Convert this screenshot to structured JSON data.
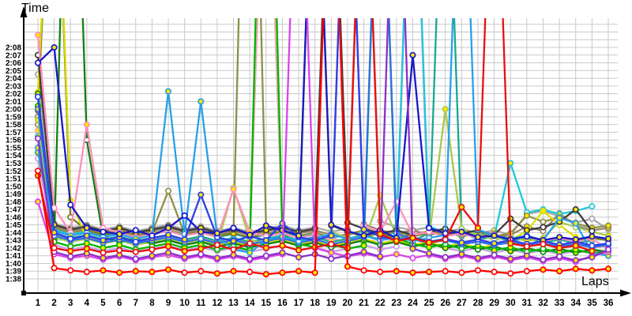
{
  "chart_data": {
    "type": "line",
    "title": "Time",
    "xlabel": "Laps",
    "grid": true,
    "legend": false,
    "background": "#ffffff",
    "grid_color": "#c9c9c9",
    "axis_color": "#000000",
    "marker_fill_primary": "#ffe800",
    "marker_fill_secondary": "#ffffff",
    "y_ticks": [
      "2:08",
      "2:07",
      "2:06",
      "2:05",
      "2:04",
      "2:03",
      "2:02",
      "2:01",
      "2:00",
      "1:59",
      "1:58",
      "1:57",
      "1:56",
      "1:55",
      "1:54",
      "1:53",
      "1:52",
      "1:51",
      "1:50",
      "1:49",
      "1:48",
      "1:47",
      "1:46",
      "1:45",
      "1:44",
      "1:43",
      "1:42",
      "1:41",
      "1:40",
      "1:39",
      "1:38"
    ],
    "y_range_seconds": [
      98,
      128
    ],
    "x_ticks": [
      1,
      2,
      3,
      4,
      5,
      6,
      7,
      8,
      9,
      10,
      11,
      12,
      13,
      14,
      15,
      16,
      17,
      18,
      19,
      20,
      21,
      22,
      23,
      24,
      25,
      26,
      27,
      28,
      29,
      30,
      31,
      32,
      33,
      34,
      35,
      36
    ],
    "x_range": [
      1,
      36
    ],
    "note": "values are lap times in seconds (98 = 1:38); values far above 128 are pit laps drawn off the top of the scale; null = no lap recorded",
    "series": [
      {
        "name": "pale-violet",
        "color": "#c8a0e8",
        "laps": [
          113.6,
          102.4,
          101.8,
          102.2,
          101.6,
          102,
          101.5,
          101.9,
          102.3,
          101.7,
          102.1,
          101.6,
          102,
          101.5,
          101.9,
          102.3,
          101.7,
          102.1,
          101.5,
          101.9,
          102.4,
          101.8,
          102.2,
          165,
          102.8,
          102,
          101.6,
          102,
          101.4,
          101.8,
          101.3,
          101.7,
          101.2,
          101.6,
          101.4,
          101.7
        ]
      },
      {
        "name": "gray",
        "color": "#a8a8a8",
        "laps": [
          124.5,
          105.2,
          104.6,
          105,
          104.4,
          104.8,
          104.2,
          104.6,
          105,
          104.4,
          104.8,
          104.2,
          104.6,
          104.1,
          104.5,
          104.9,
          104.3,
          104.7,
          104.1,
          104.5,
          165,
          105.5,
          104.7,
          104.3,
          104.7,
          104.1,
          104.5,
          103.9,
          104.3,
          103.7,
          106.4,
          106.8,
          106.1,
          105.3,
          105.8,
          104.4
        ]
      },
      {
        "name": "gray-brown",
        "color": "#96836b",
        "laps": [
          118,
          104.8,
          104.2,
          104.6,
          104,
          104.4,
          103.8,
          104.2,
          104.6,
          104,
          104.4,
          103.8,
          104.2,
          103.7,
          104.1,
          104.5,
          103.9,
          104.3,
          103.7,
          165,
          105.1,
          104.3,
          103.9,
          104.3,
          103.7,
          104.1,
          103.5,
          103.9,
          103.3,
          103.7,
          104.8,
          104.2,
          106.5,
          104.9,
          104.3,
          104.6
        ]
      },
      {
        "name": "salmon",
        "color": "#f2a8a8",
        "laps": [
          117.2,
          103.7,
          103.1,
          103.5,
          102.9,
          103.3,
          102.7,
          103.1,
          103.5,
          102.9,
          103.3,
          102.7,
          103.1,
          102.6,
          165,
          103.9,
          103.3,
          102.9,
          103.3,
          102.7,
          103.1,
          102.5,
          102.9,
          102.4,
          102.8,
          103.2,
          102.6,
          103,
          102.4,
          102.8,
          102.2,
          102.6,
          102.1,
          102.5,
          102,
          102.3
        ]
      },
      {
        "name": "teal",
        "color": "#18a890",
        "laps": [
          114.4,
          103.9,
          103.3,
          103.7,
          103.1,
          103.5,
          102.9,
          103.3,
          103.7,
          103.1,
          103.5,
          102.9,
          103.3,
          102.8,
          103.2,
          103.6,
          103,
          103.4,
          102.8,
          103.2,
          103.7,
          103.1,
          103.5,
          102.9,
          103.9,
          165,
          104.1,
          103.1,
          103.5,
          102.9,
          103.3,
          102.7,
          103.1,
          102.6,
          103,
          null
        ]
      },
      {
        "name": "cyan",
        "color": "#20c8d8",
        "laps": [
          116.5,
          104.4,
          103.8,
          104.2,
          103.6,
          104,
          103.4,
          103.8,
          104.2,
          103.6,
          104,
          103.4,
          103.8,
          103.3,
          103.7,
          104.1,
          103.5,
          103.9,
          103.3,
          103.7,
          104.2,
          103.6,
          104,
          165,
          104.8,
          104,
          103.6,
          104,
          103.4,
          113,
          106.6,
          107,
          106.4,
          106.8,
          107.4,
          null
        ]
      },
      {
        "name": "olive",
        "color": "#8f8f4a",
        "laps": [
          119,
          104.6,
          104,
          104.4,
          103.8,
          104.2,
          103.6,
          104,
          109.4,
          103.8,
          104.2,
          103.6,
          104,
          190,
          104.8,
          104.2,
          103.6,
          104,
          103.4,
          103.8,
          104.3,
          103.7,
          104.1,
          103.5,
          103.9,
          104.3,
          103.7,
          104.1,
          103.5,
          103.9,
          106.2,
          105.4,
          106,
          105.2,
          104.6,
          104.9
        ]
      },
      {
        "name": "dark-olive",
        "color": "#7a7a22",
        "laps": [
          119.8,
          165,
          106,
          104.3,
          103.7,
          104.1,
          103.5,
          103.9,
          104.3,
          103.7,
          104.1,
          103.5,
          103.9,
          103.4,
          103.8,
          104.2,
          103.6,
          165,
          104.9,
          104.1,
          103.5,
          103.9,
          103.3,
          103.7,
          104.2,
          103.6,
          104,
          103.4,
          103.8,
          103.2,
          103.6,
          103,
          103.4,
          102.9,
          103.3,
          103
        ]
      },
      {
        "name": "yellow",
        "color": "#dcdc00",
        "laps": [
          122.2,
          165,
          108.2,
          103.2,
          102.6,
          103,
          102.4,
          102.8,
          103.2,
          102.6,
          103,
          102.4,
          102.8,
          102.3,
          102.7,
          103.1,
          102.5,
          102.9,
          102.3,
          102.7,
          103.2,
          102.6,
          103,
          102.4,
          102.8,
          102.2,
          102.6,
          102,
          102.4,
          103,
          104.2,
          106.8,
          105,
          103.4,
          null,
          null
        ]
      },
      {
        "name": "yellow-green",
        "color": "#a8c850",
        "laps": [
          118.6,
          103.4,
          102.8,
          103.2,
          102.6,
          103,
          102.4,
          102.8,
          103.2,
          102.6,
          103,
          102.4,
          109.8,
          103.1,
          102.5,
          102.9,
          102.3,
          165,
          104.1,
          103.3,
          102.7,
          108.8,
          103.5,
          102.9,
          103.3,
          120,
          104.5,
          103.7,
          103.1,
          103.5,
          102.9,
          103.3,
          105.4,
          104.7,
          104.1,
          103.6
        ]
      },
      {
        "name": "dark-green",
        "color": "#128012",
        "laps": [
          122,
          103,
          180,
          116,
          103.4,
          102.8,
          103.2,
          102.6,
          103,
          102.4,
          102.8,
          102.2,
          102.6,
          102.1,
          102.5,
          102.9,
          102.3,
          102.7,
          102.1,
          102.5,
          103,
          102.4,
          102.8,
          102.2,
          102.6,
          102,
          102.4,
          101.8,
          102.2,
          101.6,
          102,
          101.5,
          101.9,
          101.4,
          101.8,
          101.5
        ]
      },
      {
        "name": "green",
        "color": "#00b400",
        "laps": [
          120.4,
          102.8,
          102.2,
          102.6,
          102,
          102.4,
          101.8,
          102.2,
          102.6,
          102,
          102.4,
          101.8,
          102.2,
          101.7,
          185,
          103.9,
          102.5,
          102.1,
          102.5,
          101.9,
          102.3,
          165,
          103.3,
          102.5,
          102.1,
          102.5,
          101.9,
          102.3,
          101.7,
          102.1,
          101.5,
          101.9,
          101.4,
          101.8,
          101.3,
          101.6
        ]
      },
      {
        "name": "black",
        "color": "#3c3c3c",
        "laps": [
          127,
          105,
          104.4,
          104.8,
          104.2,
          104.6,
          104,
          104.4,
          104.8,
          104.2,
          104.6,
          104,
          104.4,
          103.9,
          104.3,
          104.7,
          104.1,
          104.5,
          165,
          105.3,
          104.5,
          103.9,
          104.3,
          103.7,
          104.1,
          104.5,
          103.9,
          104.3,
          103.7,
          105.8,
          104.3,
          104.7,
          105.4,
          107,
          104.2,
          null
        ]
      },
      {
        "name": "pink",
        "color": "#ff90bc",
        "laps": [
          129.6,
          107.2,
          104,
          118,
          104.6,
          104,
          103.4,
          103.8,
          104.2,
          103.6,
          104,
          103.4,
          109.6,
          104.1,
          103.5,
          103.9,
          103.3,
          103.7,
          103.1,
          165,
          104.9,
          104.1,
          108,
          103.7,
          104.1,
          103.5,
          103.9,
          103.3,
          103.7,
          103.1,
          103.5,
          102.9,
          103.3,
          102.8,
          103.2,
          101.8
        ]
      },
      {
        "name": "medium-blue",
        "color": "#2f6fe8",
        "laps": [
          120,
          103.6,
          103,
          103.3,
          102.7,
          103.1,
          102.6,
          103,
          103.4,
          102.8,
          103.2,
          102.6,
          103,
          102.5,
          102.9,
          103.3,
          102.7,
          103.1,
          102.5,
          102.9,
          103.4,
          165,
          103.9,
          103.1,
          102.7,
          103,
          102.5,
          102.8,
          102.4,
          102.7,
          102.3,
          102.6,
          102.2,
          102.5,
          102.1,
          102.4
        ]
      },
      {
        "name": "sky-blue",
        "color": "#28a0e8",
        "laps": [
          115,
          104.2,
          103.6,
          104,
          103.4,
          103.8,
          103.2,
          103.6,
          122.3,
          103.8,
          121,
          103.5,
          101.8,
          101.4,
          103,
          103.5,
          102.9,
          103.3,
          103.8,
          103.2,
          103.6,
          103,
          103.4,
          102.9,
          103.3,
          103.7,
          165,
          104.4,
          103.6,
          103.2,
          103.6,
          103,
          105.9,
          105.2,
          101.4,
          101
        ]
      },
      {
        "name": "royal-blue",
        "color": "#2a40e8",
        "laps": [
          121.6,
          104,
          103.2,
          103.6,
          103,
          103.4,
          102.8,
          103.3,
          103.7,
          103.1,
          108.9,
          103.4,
          102.9,
          103.5,
          103,
          105.2,
          103.4,
          103,
          103.6,
          165,
          104.4,
          103.5,
          103,
          103.4,
          102.8,
          103.2,
          102.7,
          103.1,
          102.6,
          103,
          102.5,
          102.9,
          102.4,
          102.8,
          102.3,
          102.6
        ]
      },
      {
        "name": "navy",
        "color": "#1818c8",
        "laps": [
          126,
          128,
          107.6,
          104.6,
          104.1,
          103.8,
          104.3,
          103.6,
          104.6,
          106.2,
          104.1,
          103.9,
          104.6,
          103.7,
          104.9,
          104.3,
          103.6,
          165,
          105,
          104.2,
          103.6,
          104.3,
          103.3,
          127,
          104.6,
          103.9,
          104.1,
          103.4,
          103.6,
          103.1,
          103.5,
          103,
          103.4,
          103.1,
          103.5,
          103.2
        ]
      },
      {
        "name": "magenta",
        "color": "#d845ea",
        "laps": [
          108,
          101.2,
          100.7,
          101,
          100.5,
          100.9,
          100.4,
          100.8,
          101.1,
          100.6,
          101,
          100.5,
          100.9,
          100.4,
          100.8,
          101.2,
          165,
          102,
          101.4,
          100.9,
          101.3,
          100.8,
          101.2,
          100.7,
          101.1,
          100.6,
          101,
          100.5,
          100.9,
          100.4,
          100.8,
          100.3,
          100.7,
          100.2,
          101,
          101.5
        ]
      },
      {
        "name": "purple",
        "color": "#8a30c8",
        "laps": [
          116.2,
          101.5,
          100.9,
          101.3,
          100.7,
          101.1,
          100.6,
          101,
          101.4,
          100.8,
          101.2,
          100.7,
          101.1,
          100.6,
          101,
          101.4,
          100.8,
          101.2,
          100.6,
          101,
          101.5,
          100.9,
          165,
          101.9,
          101.3,
          100.8,
          101.2,
          100.7,
          101.1,
          100.6,
          101,
          100.5,
          100.9,
          100.4,
          100.8,
          101.8
        ]
      },
      {
        "name": "red-b",
        "color": "#e81010",
        "laps": [
          111.4,
          102,
          101.6,
          101.9,
          101.4,
          101.7,
          101.5,
          101.8,
          102.2,
          101.6,
          101.9,
          102.4,
          101.8,
          102.6,
          102,
          102.3,
          101.7,
          102.1,
          102.5,
          102,
          165,
          103.8,
          102.9,
          103.3,
          102.7,
          103.1,
          107.3,
          104.6,
          165,
          102.6,
          102.2,
          102.5,
          102,
          102.3,
          101.6,
          null
        ]
      },
      {
        "name": "red-a",
        "color": "#ff0000",
        "laps": [
          112,
          99.4,
          99.1,
          98.9,
          99.1,
          98.8,
          99,
          98.9,
          99.2,
          98.8,
          99,
          98.7,
          99,
          98.9,
          98.6,
          98.8,
          99,
          98.8,
          165,
          99.6,
          99.1,
          98.9,
          99,
          98.8,
          98.9,
          99,
          98.8,
          99.1,
          98.9,
          98.7,
          99,
          99.2,
          99,
          99.3,
          99.1,
          99.3
        ]
      }
    ]
  }
}
